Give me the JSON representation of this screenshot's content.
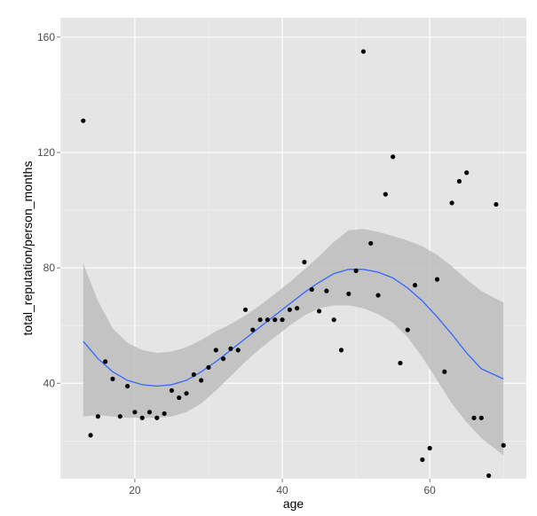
{
  "chart_data": {
    "type": "scatter",
    "title": "",
    "xlabel": "age",
    "ylabel": "total_reputation/person_months",
    "xlim": [
      9.9,
      73.1
    ],
    "ylim": [
      6.9,
      166.7
    ],
    "xticks": [
      20,
      40,
      60
    ],
    "yticks": [
      40,
      80,
      120,
      160
    ],
    "grid": true,
    "legend": "none",
    "colors": {
      "panel": "#e5e5e5",
      "grid_major": "#ffffff",
      "grid_minor": "#f2f2f2",
      "points": "#000000",
      "smooth_line": "#3366ff",
      "confidence_band": "#bdbdbd"
    },
    "points": [
      {
        "x": 13,
        "y": 131
      },
      {
        "x": 14,
        "y": 22
      },
      {
        "x": 15,
        "y": 28.5
      },
      {
        "x": 16,
        "y": 47.5
      },
      {
        "x": 17,
        "y": 41.5
      },
      {
        "x": 18,
        "y": 28.5
      },
      {
        "x": 19,
        "y": 39
      },
      {
        "x": 20,
        "y": 30
      },
      {
        "x": 21,
        "y": 28
      },
      {
        "x": 22,
        "y": 30
      },
      {
        "x": 23,
        "y": 28
      },
      {
        "x": 24,
        "y": 29.5
      },
      {
        "x": 25,
        "y": 37.5
      },
      {
        "x": 26,
        "y": 35
      },
      {
        "x": 27,
        "y": 36.5
      },
      {
        "x": 28,
        "y": 43
      },
      {
        "x": 29,
        "y": 41
      },
      {
        "x": 30,
        "y": 45.5
      },
      {
        "x": 31,
        "y": 51.5
      },
      {
        "x": 32,
        "y": 48.5
      },
      {
        "x": 33,
        "y": 52
      },
      {
        "x": 34,
        "y": 51.5
      },
      {
        "x": 35,
        "y": 65.5
      },
      {
        "x": 36,
        "y": 58.5
      },
      {
        "x": 37,
        "y": 62
      },
      {
        "x": 38,
        "y": 62
      },
      {
        "x": 39,
        "y": 62
      },
      {
        "x": 40,
        "y": 62
      },
      {
        "x": 41,
        "y": 65.5
      },
      {
        "x": 42,
        "y": 66
      },
      {
        "x": 43,
        "y": 82
      },
      {
        "x": 44,
        "y": 72.5
      },
      {
        "x": 45,
        "y": 65
      },
      {
        "x": 46,
        "y": 72
      },
      {
        "x": 47,
        "y": 62
      },
      {
        "x": 48,
        "y": 51.5
      },
      {
        "x": 49,
        "y": 71
      },
      {
        "x": 50,
        "y": 79
      },
      {
        "x": 51,
        "y": 155
      },
      {
        "x": 52,
        "y": 88.5
      },
      {
        "x": 53,
        "y": 70.5
      },
      {
        "x": 54,
        "y": 105.5
      },
      {
        "x": 55,
        "y": 118.5
      },
      {
        "x": 56,
        "y": 47
      },
      {
        "x": 57,
        "y": 58.5
      },
      {
        "x": 58,
        "y": 74
      },
      {
        "x": 59,
        "y": 13.5
      },
      {
        "x": 60,
        "y": 17.5
      },
      {
        "x": 61,
        "y": 76
      },
      {
        "x": 62,
        "y": 44
      },
      {
        "x": 63,
        "y": 102.5
      },
      {
        "x": 64,
        "y": 110
      },
      {
        "x": 65,
        "y": 113
      },
      {
        "x": 66,
        "y": 28
      },
      {
        "x": 67,
        "y": 28
      },
      {
        "x": 68,
        "y": 8
      },
      {
        "x": 69,
        "y": 102
      },
      {
        "x": 70,
        "y": 18.5
      }
    ],
    "smooth": {
      "x": [
        13,
        15,
        17,
        19,
        21,
        23,
        25,
        27,
        29,
        31,
        33,
        35,
        37,
        39,
        41,
        43,
        45,
        47,
        49,
        51,
        53,
        55,
        57,
        59,
        61,
        63,
        65,
        67,
        70
      ],
      "y": [
        54.5,
        48.5,
        44,
        41,
        39.5,
        39,
        39.5,
        41,
        44,
        47.5,
        51.5,
        55.5,
        59.5,
        63.5,
        67.5,
        71.5,
        75,
        78,
        79.5,
        79.5,
        78.5,
        76.5,
        73,
        68.5,
        63,
        57,
        50.5,
        45,
        41.5
      ],
      "lower": [
        28.5,
        29,
        28.5,
        28,
        28,
        28,
        28.5,
        30,
        33,
        37.5,
        42.5,
        47.5,
        52,
        56,
        60,
        63.5,
        66,
        67,
        67,
        66,
        64,
        61,
        56,
        49,
        41,
        33,
        26.5,
        21,
        15
      ],
      "upper": [
        81.5,
        68.5,
        59,
        54,
        51.5,
        50.5,
        51,
        52.5,
        55,
        58,
        60.5,
        63.5,
        67,
        71,
        75,
        79.5,
        84,
        89,
        93,
        93.5,
        92.5,
        91,
        89.5,
        87.5,
        84.5,
        80.5,
        76,
        72,
        68
      ]
    }
  }
}
